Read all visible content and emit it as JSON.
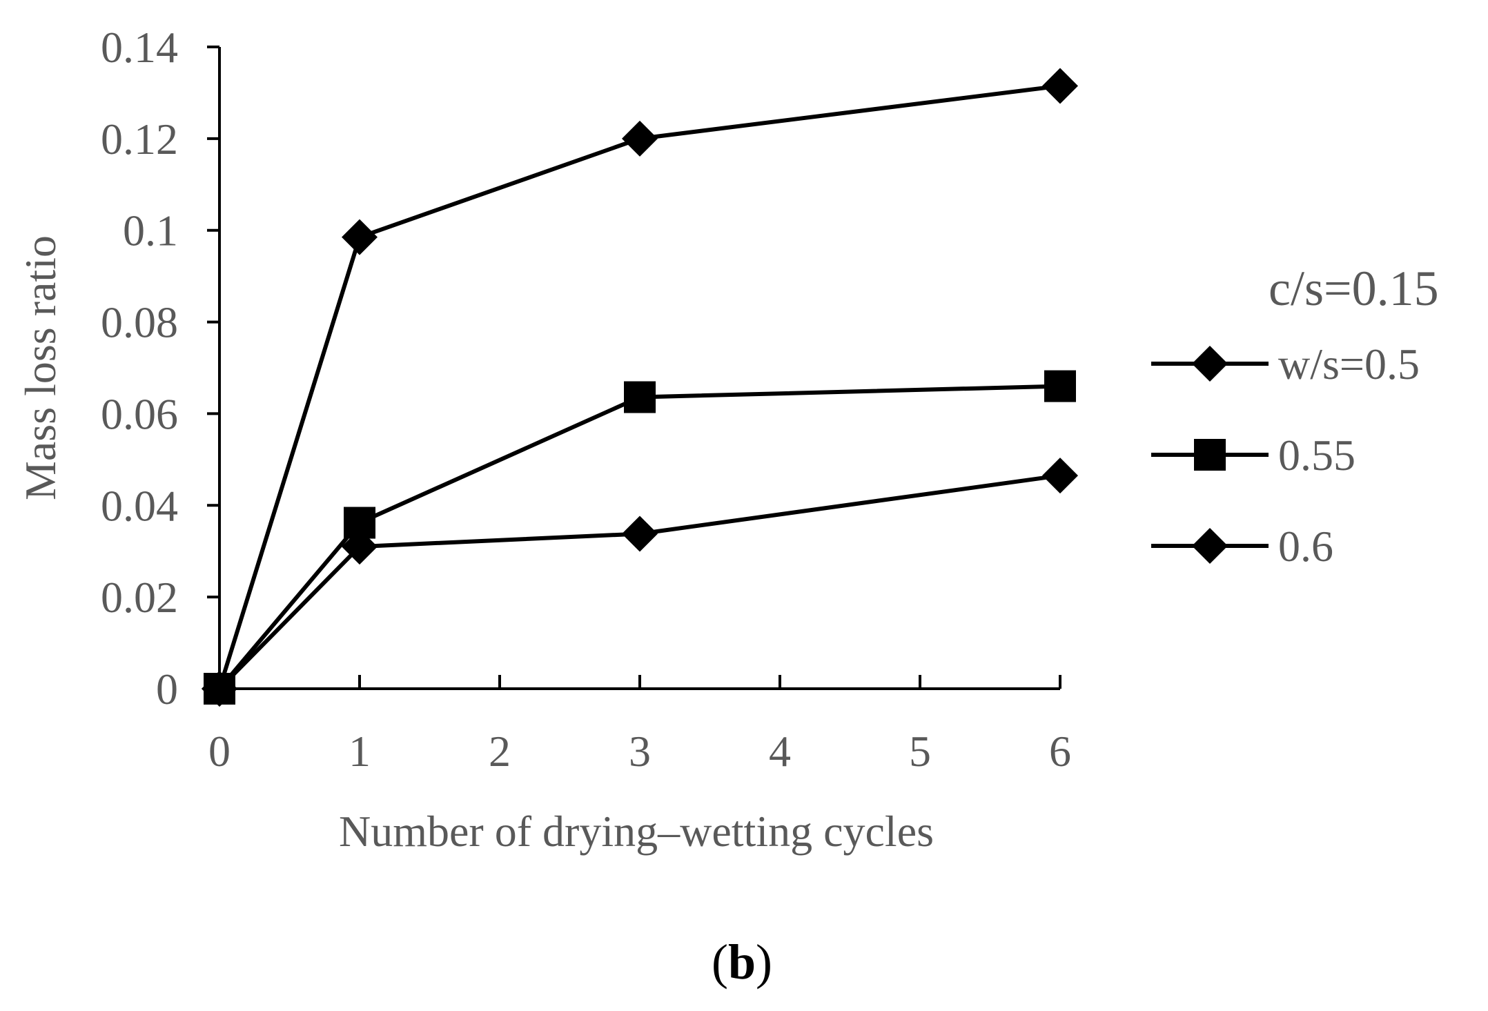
{
  "chart_data": {
    "type": "line",
    "title": "",
    "xlabel": "Number of drying–wetting cycles",
    "ylabel": "Mass loss ratio",
    "x": [
      0,
      1,
      3,
      6
    ],
    "xlim": [
      0,
      6
    ],
    "ylim": [
      0,
      0.14
    ],
    "xticks": [
      "0",
      "1",
      "2",
      "3",
      "4",
      "5",
      "6"
    ],
    "yticks": [
      "0",
      "0.02",
      "0.04",
      "0.06",
      "0.08",
      "0.1",
      "0.12",
      "0.14"
    ],
    "grid": false,
    "legend_title": "c/s=0.15",
    "legend_position": "right",
    "series": [
      {
        "name": "w/s=0.5",
        "marker": "diamond",
        "values": [
          0,
          0.0985,
          0.12,
          0.1315
        ]
      },
      {
        "name": "0.55",
        "marker": "square",
        "values": [
          0,
          0.0362,
          0.0636,
          0.066
        ]
      },
      {
        "name": "0.6",
        "marker": "diamond",
        "values": [
          0,
          0.031,
          0.0338,
          0.0465
        ]
      }
    ],
    "caption": {
      "open": "(",
      "label": "b",
      "close": ")"
    }
  },
  "colors": {
    "line": "#000000",
    "text": "#595959"
  }
}
